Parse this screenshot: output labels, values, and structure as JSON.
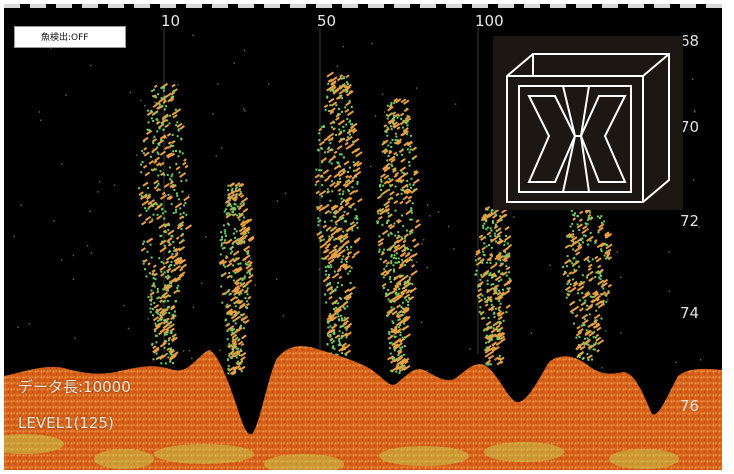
{
  "screen": {
    "ping_ticks": [
      "10",
      "50",
      "100"
    ],
    "fish_detect_button": "魚検出:OFF",
    "depth_scale": [
      "68",
      "70",
      "72",
      "74",
      "76"
    ],
    "data_length_label": "データ長:10000",
    "level_label": "LEVEL1(125)"
  },
  "colors": {
    "background": "#000000",
    "seabed_primary": "#e06a1a",
    "seabed_highlight": "#f0a040",
    "echo_green": "#6fd16a",
    "echo_orange": "#e8a040"
  },
  "icons": {
    "logo": "cube-logo-icon"
  }
}
